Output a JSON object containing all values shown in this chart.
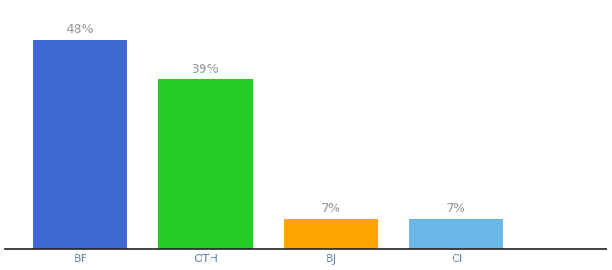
{
  "categories": [
    "BF",
    "OTH",
    "BJ",
    "CI"
  ],
  "values": [
    48,
    39,
    7,
    7
  ],
  "labels": [
    "48%",
    "39%",
    "7%",
    "7%"
  ],
  "bar_colors": [
    "#4169D4",
    "#22CC22",
    "#FFA500",
    "#6BB8E8"
  ],
  "ylim": [
    0,
    56
  ],
  "background_color": "#ffffff",
  "label_fontsize": 10,
  "tick_fontsize": 9,
  "bar_width": 0.75,
  "x_positions": [
    1,
    2,
    3,
    4
  ],
  "xlim": [
    0.4,
    5.2
  ],
  "tick_color": "#6688AA",
  "label_color": "#999999"
}
